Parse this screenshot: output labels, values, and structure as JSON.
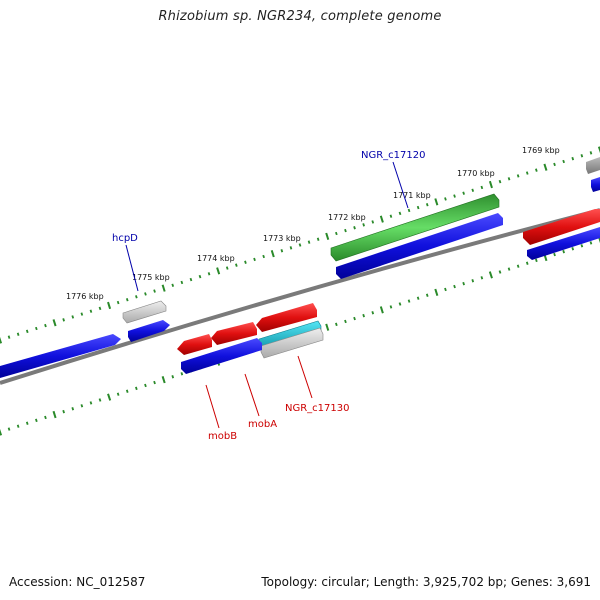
{
  "header": {
    "title": "Rhizobium sp. NGR234, complete genome"
  },
  "footer": {
    "accession": "Accession: NC_012587",
    "topology": "Topology: circular; Length: 3,925,702 bp; Genes: 3,691"
  },
  "scale_ticks": [
    "1776 kbp",
    "1775 kbp",
    "1774 kbp",
    "1773 kbp",
    "1772 kbp",
    "1771 kbp",
    "1770 kbp",
    "1769 kbp"
  ],
  "gene_labels": {
    "hcpD": "hcpD",
    "ngr_c17120": "NGR_c17120",
    "mobB": "mobB",
    "mobA": "mobA",
    "ngr_c17130": "NGR_c17130"
  },
  "colors": {
    "forward_gene": "#e01010",
    "cds": "#1010dd",
    "highlight_gene": "#33aa33",
    "rna_gene": "#22bbcc",
    "pseudo_gene": "#999999",
    "backbone": "#7a7a7a",
    "ticks": "#2a8a2a",
    "label_blue": "#0000aa",
    "label_red": "#cc0000"
  }
}
